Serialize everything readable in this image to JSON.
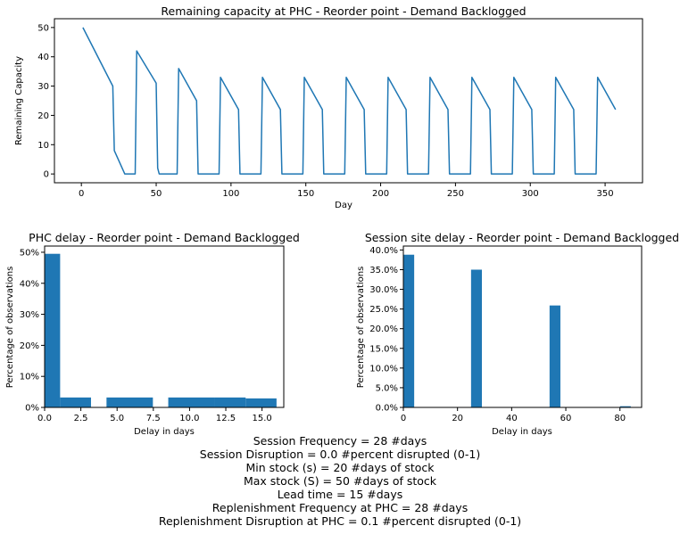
{
  "chart_data": [
    {
      "type": "line",
      "title": "Remaining capacity at PHC - Reorder point - Demand Backlogged",
      "xlabel": "Day",
      "ylabel": "Remaining Capacity",
      "xlim": [
        -18,
        375
      ],
      "ylim": [
        -3,
        53
      ],
      "xticks": [
        0,
        50,
        100,
        150,
        200,
        250,
        300,
        350
      ],
      "yticks": [
        0,
        10,
        20,
        30,
        40,
        50
      ],
      "grid": false,
      "series": [
        {
          "color": "#1f77b4",
          "x": [
            1,
            21,
            22,
            29,
            36,
            37,
            50,
            51,
            52,
            64,
            65,
            77,
            78,
            92,
            93,
            105,
            106,
            120,
            121,
            133,
            134,
            148,
            149,
            161,
            162,
            176,
            177,
            189,
            190,
            204,
            205,
            217,
            218,
            232,
            233,
            245,
            246,
            260,
            261,
            273,
            274,
            288,
            289,
            301,
            302,
            316,
            317,
            329,
            330,
            344,
            345,
            357
          ],
          "y": [
            50,
            30,
            8,
            0,
            0,
            42,
            31,
            2,
            0,
            0,
            36,
            25,
            0,
            0,
            33,
            22,
            0,
            0,
            33,
            22,
            0,
            0,
            33,
            22,
            0,
            0,
            33,
            22,
            0,
            0,
            33,
            22,
            0,
            0,
            33,
            22,
            0,
            0,
            33,
            22,
            0,
            0,
            33,
            22,
            0,
            0,
            33,
            22,
            0,
            0,
            33,
            22
          ]
        }
      ]
    },
    {
      "type": "bar",
      "title": "PHC delay - Reorder point - Demand Backlogged",
      "xlabel": "Delay in days",
      "ylabel": "Percentage of observations",
      "xlim": [
        0,
        16.5
      ],
      "ylim": [
        0,
        52
      ],
      "xticks": [
        "0.0",
        "2.5",
        "5.0",
        "7.5",
        "10.0",
        "12.5",
        "15.0"
      ],
      "yticks": [
        "0%",
        "10%",
        "20%",
        "30%",
        "40%",
        "50%"
      ],
      "grid": false,
      "bins": [
        {
          "start": 0.0,
          "end": 1.07,
          "value": 49.5
        },
        {
          "start": 1.07,
          "end": 3.2,
          "value": 3.2
        },
        {
          "start": 4.27,
          "end": 7.47,
          "value": 3.2
        },
        {
          "start": 8.53,
          "end": 11.73,
          "value": 3.2
        },
        {
          "start": 11.73,
          "end": 13.87,
          "value": 3.2
        },
        {
          "start": 13.87,
          "end": 16.0,
          "value": 2.9
        }
      ]
    },
    {
      "type": "bar",
      "title": "Session site delay - Reorder point - Demand Backlogged",
      "xlabel": "Delay in days",
      "ylabel": "Percentage of observations",
      "xlim": [
        0,
        88
      ],
      "ylim": [
        0,
        41
      ],
      "xticks": [
        "0",
        "20",
        "40",
        "60",
        "80"
      ],
      "yticks": [
        "0.0%",
        "5.0%",
        "10.0%",
        "15.0%",
        "20.0%",
        "25.0%",
        "30.0%",
        "35.0%",
        "40.0%"
      ],
      "grid": false,
      "bins": [
        {
          "start": 0,
          "end": 4,
          "value": 38.8
        },
        {
          "start": 25,
          "end": 29,
          "value": 35.0
        },
        {
          "start": 54,
          "end": 58,
          "value": 25.9
        },
        {
          "start": 80,
          "end": 84,
          "value": 0.3
        }
      ]
    }
  ],
  "parameters": [
    "Session Frequency = 28 #days",
    "Session Disruption = 0.0 #percent disrupted (0-1)",
    "Min stock (s) = 20 #days of stock",
    "Max stock (S) = 50 #days of stock",
    "Lead time = 15 #days",
    "Replenishment Frequency at PHC = 28 #days",
    "Replenishment Disruption at PHC = 0.1 #percent disrupted (0-1)"
  ],
  "colors": {
    "series": "#1f77b4",
    "axes": "#000000"
  }
}
